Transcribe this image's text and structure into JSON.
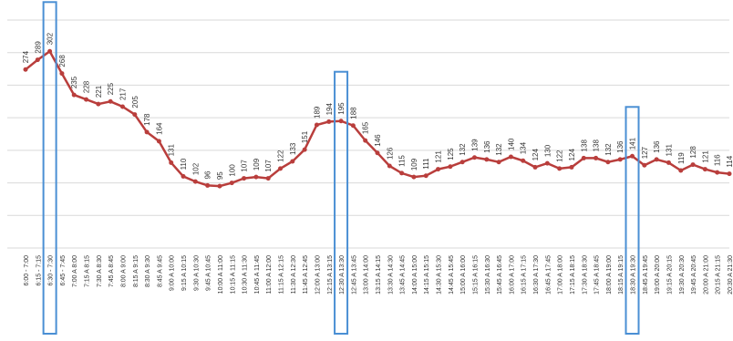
{
  "chart_data": {
    "type": "line",
    "categories": [
      "6:00 - 7:00",
      "6:15 - 7:15",
      "6:30 - 7:30",
      "6:45 - 7:45",
      "7:00 A 8:00",
      "7:15 A 8:15",
      "7:30 A 8:30",
      "7:45 A 8:45",
      "8:00 A 9:00",
      "8:15 A 9:15",
      "8:30 A 9:30",
      "8:45 A 9:45",
      "9:00 A 10:00",
      "9:15 A 10:15",
      "9:30 A 10:30",
      "9:45 A 10:45",
      "10:00 A 11:00",
      "10:15 A 11:15",
      "10:30 A 11:30",
      "10:45 A 11:45",
      "11:00 A 12:00",
      "11:15 A 12:15",
      "11:30 A 12:30",
      "11:45 A 12:45",
      "12:00 A 13:00",
      "12:15 A 13:15",
      "12:30 A 13:30",
      "12:45 A 13:45",
      "13:00 A 14:00",
      "13:15 A 14:15",
      "13:30 A 14:30",
      "13:45 A 14:45",
      "14:00 A 15:00",
      "14:15 A 15:15",
      "14:30 A 15:30",
      "14:45 A 15:45",
      "15:00 A 16:00",
      "15:15 A 16:15",
      "15:30 A 16:30",
      "15:45 A 16:45",
      "16:00 A 17:00",
      "16:15 A 17:15",
      "16:30 A 17:30",
      "16:45 A 17:45",
      "17:00 A 18:00",
      "17:15 A 18:15",
      "17:30 A 18:30",
      "17:45 A 18:45",
      "18:00 A 19:00",
      "18:15 A 19:15",
      "18:30 A 19:30",
      "18:45 A 19:45",
      "19:00 A 20:00",
      "19:15 A 20:15",
      "19:30 A 20:30",
      "19:45 A 20:45",
      "20:00 A 21:00",
      "20:15 A 21:15",
      "20:30 A 21:30"
    ],
    "values": [
      274,
      289,
      302,
      268,
      235,
      228,
      221,
      225,
      217,
      205,
      178,
      164,
      131,
      110,
      102,
      96,
      95,
      100,
      107,
      109,
      107,
      122,
      133,
      151,
      189,
      194,
      195,
      188,
      165,
      146,
      126,
      115,
      109,
      111,
      121,
      125,
      132,
      139,
      136,
      132,
      140,
      134,
      124,
      130,
      122,
      124,
      138,
      138,
      132,
      136,
      141,
      127,
      136,
      131,
      119,
      128,
      121,
      116,
      114
    ],
    "color": "#b93e3c",
    "highlight": [
      2,
      26,
      50
    ],
    "highlight_color": "#4a8fd4",
    "ylim": [
      0,
      350
    ],
    "yticks": [
      0,
      50,
      100,
      150,
      200,
      250,
      300,
      350
    ],
    "grid": true
  }
}
